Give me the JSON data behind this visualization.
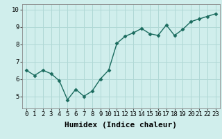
{
  "x": [
    0,
    1,
    2,
    3,
    4,
    5,
    6,
    7,
    8,
    9,
    10,
    11,
    12,
    13,
    14,
    15,
    16,
    17,
    18,
    19,
    20,
    21,
    22,
    23
  ],
  "y": [
    6.5,
    6.2,
    6.5,
    6.3,
    5.9,
    4.8,
    5.4,
    5.0,
    5.3,
    6.0,
    6.5,
    8.05,
    8.45,
    8.65,
    8.9,
    8.6,
    8.5,
    9.1,
    8.5,
    8.85,
    9.3,
    9.45,
    9.6,
    9.75
  ],
  "line_color": "#1a6b5e",
  "marker": "D",
  "marker_size": 2.5,
  "bg_color": "#d0eeec",
  "grid_color": "#b0d8d5",
  "xlabel": "Humidex (Indice chaleur)",
  "xlabel_fontsize": 8,
  "yticks": [
    5,
    6,
    7,
    8,
    9,
    10
  ],
  "xticks": [
    0,
    1,
    2,
    3,
    4,
    5,
    6,
    7,
    8,
    9,
    10,
    11,
    12,
    13,
    14,
    15,
    16,
    17,
    18,
    19,
    20,
    21,
    22,
    23
  ],
  "xlim": [
    -0.5,
    23.5
  ],
  "ylim": [
    4.3,
    10.3
  ],
  "tick_fontsize": 6.5
}
